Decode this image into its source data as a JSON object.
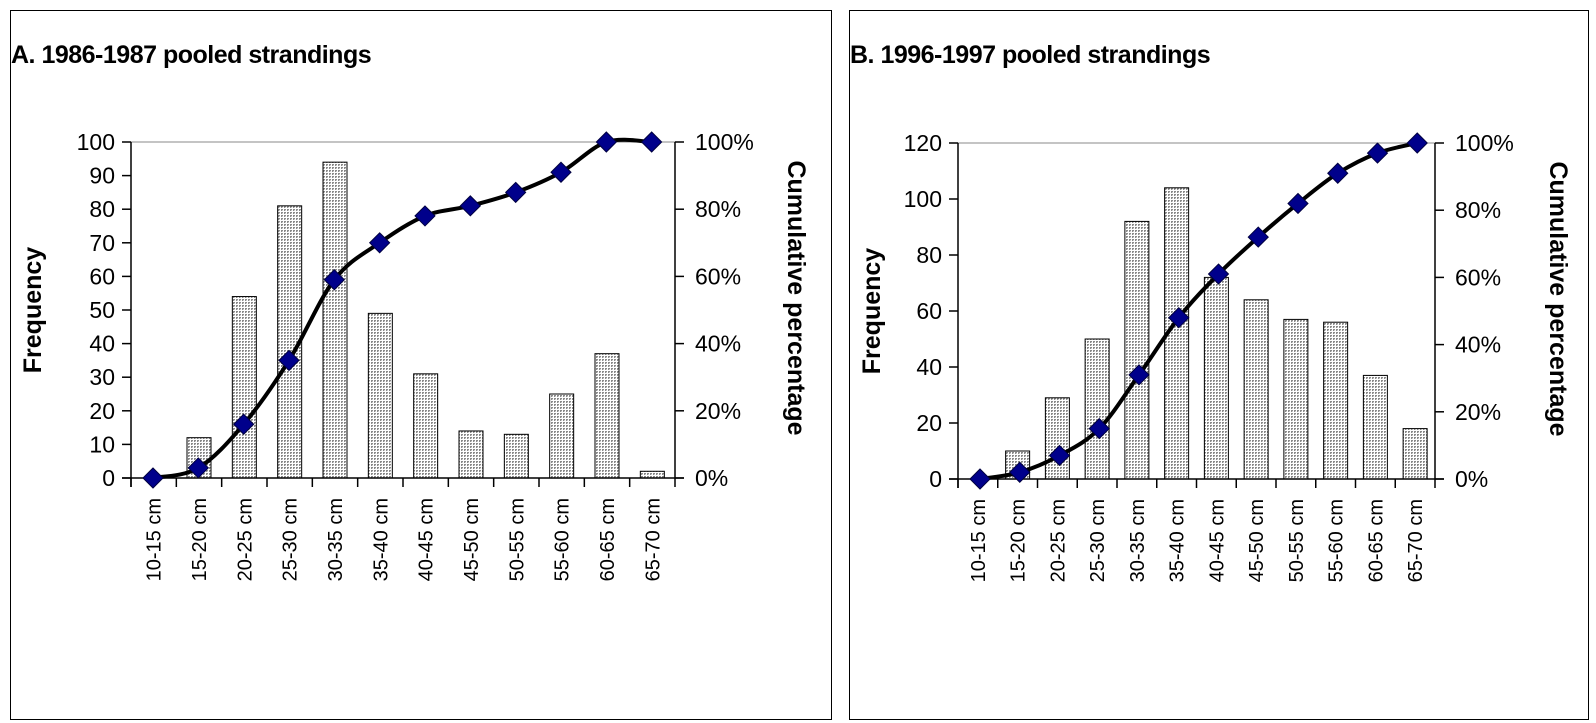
{
  "chart_data": [
    {
      "type": "bar",
      "title": "A. 1986-1987 pooled strandings",
      "categories": [
        "10-15 cm",
        "15-20 cm",
        "20-25 cm",
        "25-30 cm",
        "30-35 cm",
        "35-40 cm",
        "40-45 cm",
        "45-50 cm",
        "50-55 cm",
        "55-60 cm",
        "60-65 cm",
        "65-70 cm"
      ],
      "series": [
        {
          "type": "bar",
          "axis": "left",
          "values": [
            0,
            12,
            54,
            81,
            94,
            49,
            31,
            14,
            13,
            25,
            37,
            2
          ]
        },
        {
          "type": "line",
          "axis": "right",
          "values": [
            0,
            3,
            16,
            35,
            59,
            70,
            78,
            81,
            85,
            91,
            100,
            100
          ]
        }
      ],
      "ylabel": "Frequency",
      "y2label": "Cumulative percentage",
      "ylim": [
        0,
        100
      ],
      "yticks": [
        "0",
        "10",
        "20",
        "30",
        "40",
        "50",
        "60",
        "70",
        "80",
        "90",
        "100"
      ],
      "y2lim": [
        0,
        100
      ],
      "y2ticks": [
        "0%",
        "20%",
        "40%",
        "60%",
        "80%",
        "100%"
      ],
      "grid": false,
      "colors": {
        "bar_fill": "#b8b8b8",
        "line": "#000000",
        "marker": "#00008b"
      }
    },
    {
      "type": "bar",
      "title": "B. 1996-1997 pooled strandings",
      "categories": [
        "10-15 cm",
        "15-20 cm",
        "20-25 cm",
        "25-30 cm",
        "30-35 cm",
        "35-40 cm",
        "40-45 cm",
        "45-50 cm",
        "50-55 cm",
        "55-60 cm",
        "60-65 cm",
        "65-70 cm"
      ],
      "series": [
        {
          "type": "bar",
          "axis": "left",
          "values": [
            0,
            10,
            29,
            50,
            92,
            104,
            72,
            64,
            57,
            56,
            37,
            18
          ]
        },
        {
          "type": "line",
          "axis": "right",
          "values": [
            0,
            2,
            7,
            15,
            31,
            48,
            61,
            72,
            82,
            91,
            97,
            100
          ]
        }
      ],
      "ylabel": "Frequency",
      "y2label": "Cumulative percentage",
      "ylim": [
        0,
        120
      ],
      "yticks": [
        "0",
        "20",
        "40",
        "60",
        "80",
        "100",
        "120"
      ],
      "y2lim": [
        0,
        100
      ],
      "y2ticks": [
        "0%",
        "20%",
        "40%",
        "60%",
        "80%",
        "100%"
      ],
      "grid": false,
      "colors": {
        "bar_fill": "#b8b8b8",
        "line": "#000000",
        "marker": "#00008b"
      }
    }
  ]
}
